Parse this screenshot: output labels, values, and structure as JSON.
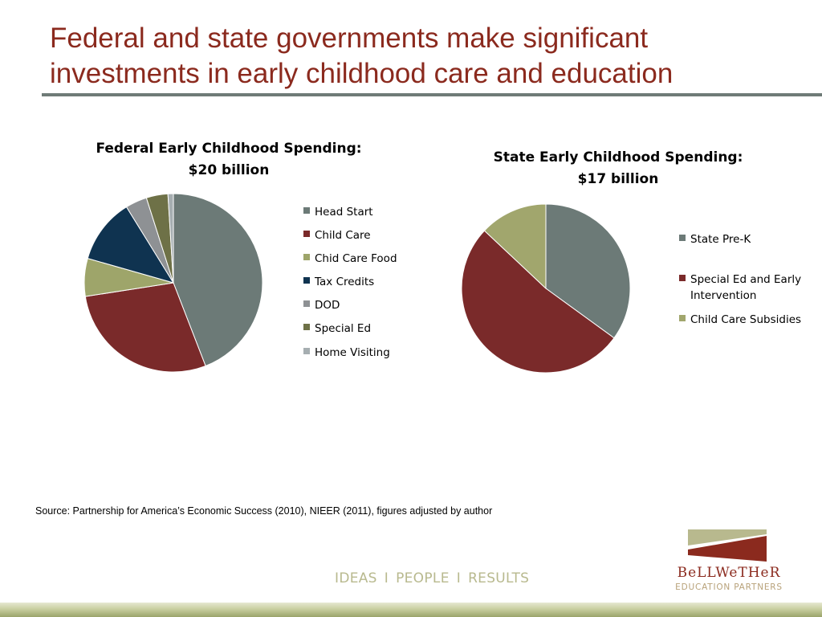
{
  "slide": {
    "title_line1": "Federal and state governments make significant",
    "title_line2": "investments in early childhood care and education",
    "source": "Source: Partnership for America’s Economic Success (2010), NIEER (2011), figures adjusted by author",
    "tagline": [
      "IDEAS",
      "PEOPLE",
      "RESULTS"
    ],
    "tagline_separator": "I",
    "logo_name": "BeLLWeTHeR",
    "logo_sub": "EDUCATION PARTNERS",
    "brand_colors": {
      "red": "#8B2A1E",
      "olive": "#B8B98E",
      "rule": "#6F7B77"
    }
  },
  "chart_data": [
    {
      "type": "pie",
      "title_line1": "Federal Early Childhood Spending:",
      "title_line2": "$20 billion",
      "legend_position": "right",
      "series": [
        {
          "name": "Head Start",
          "value": 45,
          "color": "#6C7A77"
        },
        {
          "name": "Child Care",
          "value": 29,
          "color": "#7A2A2A"
        },
        {
          "name": "Chid Care Food",
          "value": 7,
          "color": "#9EA56A"
        },
        {
          "name": "Tax Credits",
          "value": 12,
          "color": "#0F3350"
        },
        {
          "name": "DOD",
          "value": 4,
          "color": "#8E9194"
        },
        {
          "name": "Special Ed",
          "value": 4,
          "color": "#6E7147"
        },
        {
          "name": "Home Visiting",
          "value": 1,
          "color": "#A6AEB1"
        }
      ]
    },
    {
      "type": "pie",
      "title_line1": "State Early Childhood Spending:",
      "title_line2": "$17 billion",
      "legend_position": "right",
      "series": [
        {
          "name": "State Pre-K",
          "value": 35,
          "color": "#6C7A77"
        },
        {
          "name": "Special Ed and Early Intervention",
          "label_lines": [
            "Special Ed and Early",
            "Intervention"
          ],
          "value": 52,
          "color": "#7A2A2A"
        },
        {
          "name": "Child Care Subsidies",
          "value": 13,
          "color": "#A1A66D"
        }
      ]
    }
  ]
}
